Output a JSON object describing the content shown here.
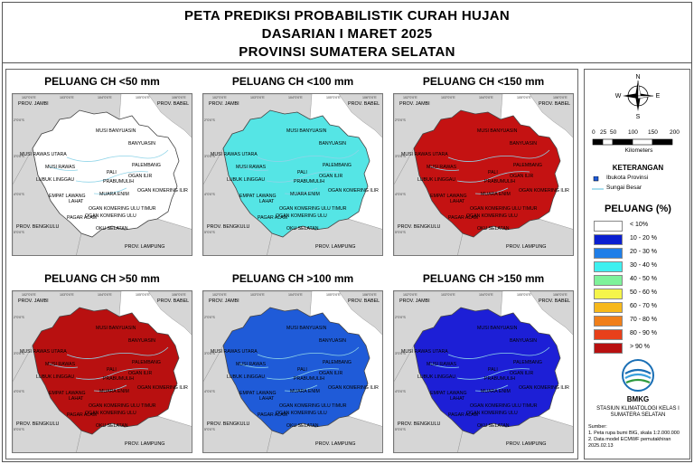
{
  "header": {
    "title_line1": "PETA PREDIKSI PROBABILISTIK CURAH HUJAN",
    "title_line2": "DASARIAN I MARET 2025",
    "title_line3": "PROVINSI SUMATERA SELATAN"
  },
  "panels": [
    {
      "title": "PELUANG CH <50 mm",
      "fill": "#ffffff"
    },
    {
      "title": "PELUANG CH <100 mm",
      "fill": "#55e5e5"
    },
    {
      "title": "PELUANG CH <150 mm",
      "fill": "#c41212"
    },
    {
      "title": "PELUANG CH >50 mm",
      "fill": "#b81010"
    },
    {
      "title": "PELUANG CH >100 mm",
      "fill": "#1f5bd8"
    },
    {
      "title": "PELUANG CH >150 mm",
      "fill": "#1d1fd6"
    }
  ],
  "map_labels": {
    "prov_jambi": "PROV. JAMBI",
    "prov_babel": "PROV. BABEL",
    "prov_bengkulu": "PROV. BENGKULU",
    "prov_lampung": "PROV. LAMPUNG",
    "musi_banyuasin": "MUSI BANYUASIN",
    "banyuasin": "BANYUASIN",
    "musi_rawas_utara": "MUSI RAWAS UTARA",
    "musi_rawas": "MUSI RAWAS",
    "palembang": "PALEMBANG",
    "pali": "PALI",
    "lubuk_linggau": "LUBUK LINGGAU",
    "prabumulih": "PRABUMULIH",
    "ogan_ilir": "OGAN ILIR",
    "muara_enim": "MUARA ENIM",
    "ogan_komering_ilir": "OGAN KOMERING ILIR",
    "empat_lawang": "EMPAT LAWANG",
    "lahat": "LAHAT",
    "pagar_alam": "PAGAR ALAM",
    "oku_timur": "OGAN KOMERING ULU TIMUR",
    "oku_selatan": "OKU SELATAN",
    "oku": "OGAN KOMERING ULU"
  },
  "coords": {
    "lon1": "102°0'0\"E",
    "lon2": "103°0'0\"E",
    "lon3": "104°0'0\"E",
    "lon4": "105°0'0\"E",
    "lon5": "106°0'0\"E",
    "lat1": "2°0'0\"S",
    "lat2": "3°0'0\"S",
    "lat3": "4°0'0\"S",
    "lat4": "5°0'0\"S"
  },
  "compass": {
    "n": "N",
    "e": "E",
    "s": "S",
    "w": "W"
  },
  "scale": {
    "ticks": [
      "0",
      "25",
      "50",
      "100",
      "150",
      "200"
    ],
    "units": "Kilometers"
  },
  "keterangan": {
    "title": "KETERANGAN",
    "ibukota": "Ibukota Provinsi",
    "sungai": "Sungai Besar"
  },
  "peluang": {
    "title": "PELUANG (%)",
    "classes": [
      {
        "label": "< 10%",
        "color": "#ffffff"
      },
      {
        "label": "10 - 20 %",
        "color": "#0a1fd0"
      },
      {
        "label": "20 - 30 %",
        "color": "#1f7ee8"
      },
      {
        "label": "30 - 40 %",
        "color": "#3ef0f0"
      },
      {
        "label": "40 - 50 %",
        "color": "#7ef29a"
      },
      {
        "label": "50 - 60 %",
        "color": "#f5f54a"
      },
      {
        "label": "60 - 70 %",
        "color": "#f7b81a"
      },
      {
        "label": "70 - 80 %",
        "color": "#f07f1a"
      },
      {
        "label": "80 - 90 %",
        "color": "#e8401a"
      },
      {
        "label": "> 90 %",
        "color": "#b81010"
      }
    ]
  },
  "footer": {
    "logo_name": "BMKG",
    "station_line1": "STASIUN KLIMATOLOGI KELAS I",
    "station_line2": "SUMATERA SELATAN",
    "sumber_title": "Sumber:",
    "sumber_1": "1. Peta rupa bumi BIG, skala 1:2.000.000",
    "sumber_2": "2. Data model ECMWF pemutakhiran",
    "sumber_3": "2025.02.13"
  },
  "colors": {
    "sea": "#ffffff",
    "land_outside": "#d6d6d6",
    "river": "#8fd4e8",
    "boundary": "#444444"
  }
}
